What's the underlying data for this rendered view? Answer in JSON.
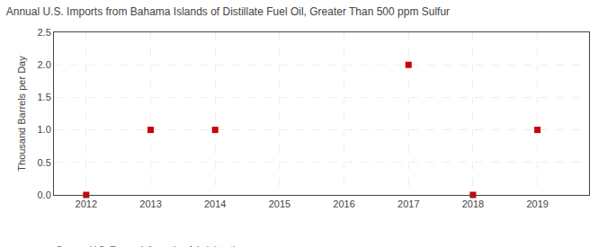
{
  "chart_data": {
    "type": "scatter",
    "title": "Annual U.S. Imports from Bahama Islands of Distillate Fuel Oil, Greater Than 500 ppm Sulfur",
    "ylabel": "Thousand Barrels per Day",
    "annotations": [
      "Source: U.S. Energy Information Administration"
    ],
    "x": [
      2012,
      2013,
      2014,
      2017,
      2018,
      2019
    ],
    "values": [
      0.0,
      1.0,
      1.0,
      2.0,
      0.0,
      1.0
    ],
    "color": "#cc0000",
    "marker": "square",
    "xlim": [
      2011.5,
      2019.8
    ],
    "xticks": [
      2012,
      2013,
      2014,
      2015,
      2016,
      2017,
      2018,
      2019
    ],
    "ylim": [
      0,
      2.5
    ],
    "yticks": [
      {
        "value": 0.0,
        "label": "0.0"
      },
      0.5,
      {
        "value": 1.0,
        "label": "1.0"
      },
      1.5,
      {
        "value": 2.0,
        "label": "2.0"
      },
      2.5
    ],
    "grid": true
  }
}
